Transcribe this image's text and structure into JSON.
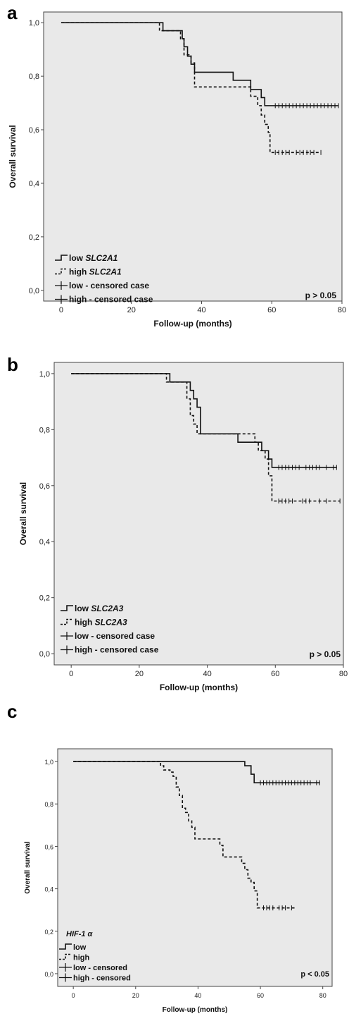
{
  "colors": {
    "plot_bg": "#e9e9e9",
    "frame": "#444444",
    "line": "#111111"
  },
  "chart_data": [
    {
      "panel": "a",
      "type": "line",
      "subtype": "kaplan-meier",
      "xlabel": "Follow-up (months)",
      "ylabel": "Overall survival",
      "xlim": [
        -5,
        80
      ],
      "ylim": [
        -0.04,
        1.04
      ],
      "xticks": [
        0,
        20,
        40,
        60,
        80
      ],
      "yticks": [
        "1,0",
        "0,8",
        "0,6",
        "0,4",
        "0,2",
        "0,0"
      ],
      "yticks_values": [
        1.0,
        0.8,
        0.6,
        0.4,
        0.2,
        0.0
      ],
      "pvalue": "p > 0.05",
      "legend": {
        "position": "bottom-left",
        "entries": [
          {
            "text": "low ",
            "italic": "SLC2A1",
            "symbol": "solid-step"
          },
          {
            "text": "high ",
            "italic": "SLC2A1",
            "symbol": "dashed-step"
          },
          {
            "text": "low - censored case",
            "italic": "",
            "symbol": "cross"
          },
          {
            "text": "high - censored case",
            "italic": "",
            "symbol": "cross"
          }
        ]
      },
      "series": [
        {
          "name": "low SLC2A1",
          "style": "solid",
          "steps": [
            [
              0,
              1.0
            ],
            [
              29,
              0.97
            ],
            [
              34.5,
              0.94
            ],
            [
              35,
              0.91
            ],
            [
              36,
              0.875
            ],
            [
              37,
              0.845
            ],
            [
              38,
              0.815
            ],
            [
              49,
              0.785
            ],
            [
              54,
              0.75
            ],
            [
              57,
              0.72
            ],
            [
              58,
              0.69
            ],
            [
              79,
              0.69
            ]
          ],
          "censored": [
            61,
            62,
            63,
            64,
            65,
            66,
            67,
            68,
            69,
            70,
            71,
            72,
            73,
            74,
            75,
            76,
            77,
            78,
            79
          ]
        },
        {
          "name": "high SLC2A1",
          "style": "dashed",
          "steps": [
            [
              0,
              1.0
            ],
            [
              28,
              0.97
            ],
            [
              34,
              0.94
            ],
            [
              35,
              0.88
            ],
            [
              37,
              0.85
            ],
            [
              38,
              0.76
            ],
            [
              54,
              0.725
            ],
            [
              56,
              0.69
            ],
            [
              57,
              0.655
            ],
            [
              58,
              0.62
            ],
            [
              59,
              0.59
            ],
            [
              59.5,
              0.515
            ],
            [
              74,
              0.515
            ]
          ],
          "censored": [
            61,
            62,
            63,
            64,
            65,
            67,
            68,
            69,
            70,
            71,
            72,
            74
          ]
        }
      ]
    },
    {
      "panel": "b",
      "type": "line",
      "subtype": "kaplan-meier",
      "xlabel": "Follow-up (months)",
      "ylabel": "Overall survival",
      "xlim": [
        -5,
        80
      ],
      "ylim": [
        -0.04,
        1.04
      ],
      "xticks": [
        0,
        20,
        40,
        60,
        80
      ],
      "yticks": [
        "1,0",
        "0,8",
        "0,6",
        "0,4",
        "0,2",
        "0,0"
      ],
      "yticks_values": [
        1.0,
        0.8,
        0.6,
        0.4,
        0.2,
        0.0
      ],
      "pvalue": "p > 0.05",
      "legend": {
        "position": "bottom-left",
        "entries": [
          {
            "text": "low ",
            "italic": "SLC2A3",
            "symbol": "solid-step"
          },
          {
            "text": "high ",
            "italic": "SLC2A3",
            "symbol": "dashed-step"
          },
          {
            "text": "low - censored case",
            "italic": "",
            "symbol": "cross"
          },
          {
            "text": "high - censored case",
            "italic": "",
            "symbol": "cross"
          }
        ]
      },
      "series": [
        {
          "name": "low SLC2A3",
          "style": "solid",
          "steps": [
            [
              0,
              1.0
            ],
            [
              29,
              0.97
            ],
            [
              35,
              0.94
            ],
            [
              36,
              0.91
            ],
            [
              37,
              0.88
            ],
            [
              38,
              0.785
            ],
            [
              49,
              0.755
            ],
            [
              56,
              0.725
            ],
            [
              58,
              0.695
            ],
            [
              59,
              0.665
            ],
            [
              78,
              0.665
            ]
          ],
          "censored": [
            61,
            62,
            63,
            64,
            65,
            66,
            67,
            69,
            70,
            71,
            72,
            73,
            75,
            77,
            78
          ]
        },
        {
          "name": "high SLC2A3",
          "style": "dashed",
          "steps": [
            [
              0,
              1.0
            ],
            [
              28,
              0.97
            ],
            [
              34,
              0.91
            ],
            [
              35,
              0.85
            ],
            [
              36,
              0.82
            ],
            [
              37,
              0.785
            ],
            [
              54,
              0.755
            ],
            [
              55,
              0.725
            ],
            [
              57,
              0.695
            ],
            [
              58,
              0.635
            ],
            [
              59,
              0.545
            ],
            [
              79,
              0.545
            ]
          ],
          "censored": [
            61,
            62,
            63,
            64,
            65,
            68,
            69,
            70,
            73,
            75,
            79
          ]
        }
      ]
    },
    {
      "panel": "c",
      "type": "line",
      "subtype": "kaplan-meier",
      "xlabel": "Follow-up (months)",
      "ylabel": "Overall survival",
      "xlim": [
        -5,
        83
      ],
      "ylim": [
        -0.06,
        1.06
      ],
      "xticks": [
        0,
        20,
        40,
        60,
        80
      ],
      "yticks": [
        "1,0",
        "0,8",
        "0,6",
        "0,4",
        "0,2",
        "0,0"
      ],
      "yticks_values": [
        1.0,
        0.8,
        0.6,
        0.4,
        0.2,
        0.0
      ],
      "pvalue": "p < 0.05",
      "legend_title": "HIF-1 α",
      "legend": {
        "position": "bottom-left",
        "entries": [
          {
            "text": "low",
            "italic": "",
            "symbol": "solid-step"
          },
          {
            "text": "high",
            "italic": "",
            "symbol": "dashed-step"
          },
          {
            "text": "low - censored",
            "italic": "",
            "symbol": "cross"
          },
          {
            "text": "high - censored",
            "italic": "",
            "symbol": "cross"
          }
        ]
      },
      "series": [
        {
          "name": "low",
          "style": "solid",
          "steps": [
            [
              0,
              1.0
            ],
            [
              55,
              0.98
            ],
            [
              57,
              0.94
            ],
            [
              58,
              0.9
            ],
            [
              79,
              0.9
            ]
          ],
          "censored": [
            60,
            61,
            62,
            63,
            64,
            65,
            66,
            67,
            68,
            69,
            70,
            71,
            72,
            73,
            74,
            75,
            76,
            78,
            79
          ]
        },
        {
          "name": "high",
          "style": "dashed",
          "steps": [
            [
              0,
              1.0
            ],
            [
              28,
              0.98
            ],
            [
              29,
              0.96
            ],
            [
              31,
              0.95
            ],
            [
              32,
              0.93
            ],
            [
              33,
              0.88
            ],
            [
              34,
              0.84
            ],
            [
              35,
              0.78
            ],
            [
              36,
              0.76
            ],
            [
              37,
              0.72
            ],
            [
              38,
              0.69
            ],
            [
              39,
              0.635
            ],
            [
              47,
              0.605
            ],
            [
              48,
              0.55
            ],
            [
              54,
              0.52
            ],
            [
              55,
              0.49
            ],
            [
              56,
              0.45
            ],
            [
              57,
              0.43
            ],
            [
              58,
              0.39
            ],
            [
              59,
              0.31
            ],
            [
              71,
              0.31
            ]
          ],
          "censored": [
            61,
            62,
            63,
            64,
            66,
            67,
            68,
            70
          ]
        }
      ]
    }
  ]
}
